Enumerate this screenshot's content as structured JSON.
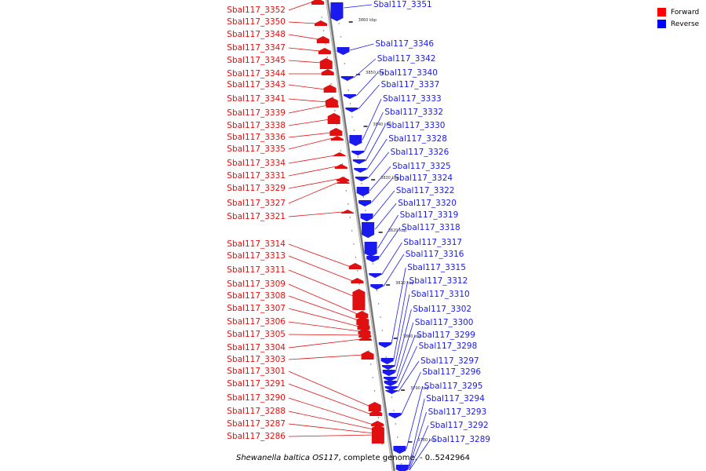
{
  "colors": {
    "forward": "#e01010",
    "reverse": "#1a1aee",
    "backbone": "#999999"
  },
  "legend": [
    {
      "label": "Forward",
      "color": "#ff0000"
    },
    {
      "label": "Reverse",
      "color": "#0000ff"
    }
  ],
  "caption": {
    "organism": "Shewanella baltica OS117",
    "rest": ", complete genome. - 0..5242964"
  },
  "tick_labels": [
    "3860 kbp",
    "3850 kbp",
    "3840 kbp",
    "3830 kbp",
    "3820 kbp",
    "3810 kbp",
    "3800 kbp",
    "3790 kbp",
    "3780 kbp"
  ],
  "forward_genes": [
    "Sbal117_3352",
    "Sbal117_3350",
    "Sbal117_3348",
    "Sbal117_3347",
    "Sbal117_3345",
    "Sbal117_3344",
    "Sbal117_3343",
    "Sbal117_3341",
    "Sbal117_3339",
    "Sbal117_3338",
    "Sbal117_3336",
    "Sbal117_3335",
    "Sbal117_3334",
    "Sbal117_3331",
    "Sbal117_3329",
    "Sbal117_3327",
    "Sbal117_3321",
    "Sbal117_3314",
    "Sbal117_3313",
    "Sbal117_3311",
    "Sbal117_3309",
    "Sbal117_3308",
    "Sbal117_3307",
    "Sbal117_3306",
    "Sbal117_3305",
    "Sbal117_3304",
    "Sbal117_3303",
    "Sbal117_3301",
    "Sbal117_3291",
    "Sbal117_3290",
    "Sbal117_3288",
    "Sbal117_3287",
    "Sbal117_3286"
  ],
  "reverse_genes": [
    "Sbal117_3351",
    "Sbal117_3346",
    "Sbal117_3342",
    "Sbal117_3340",
    "Sbal117_3337",
    "Sbal117_3333",
    "Sbal117_3332",
    "Sbal117_3330",
    "Sbal117_3328",
    "Sbal117_3326",
    "Sbal117_3325",
    "Sbal117_3324",
    "Sbal117_3322",
    "Sbal117_3320",
    "Sbal117_3319",
    "Sbal117_3318",
    "Sbal117_3317",
    "Sbal117_3316",
    "Sbal117_3315",
    "Sbal117_3312",
    "Sbal117_3310",
    "Sbal117_3302",
    "Sbal117_3300",
    "Sbal117_3299",
    "Sbal117_3298",
    "Sbal117_3297",
    "Sbal117_3296",
    "Sbal117_3295",
    "Sbal117_3294",
    "Sbal117_3293",
    "Sbal117_3292",
    "Sbal117_3289"
  ]
}
